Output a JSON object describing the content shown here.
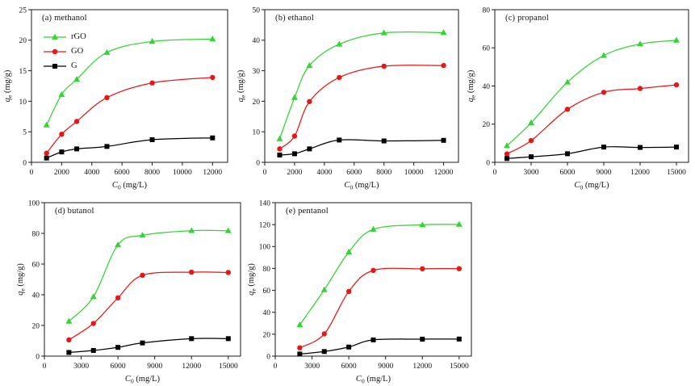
{
  "colors": {
    "rGO": "#33d433",
    "GO": "#e81717",
    "G": "#000000",
    "frame": "#1a1a1a",
    "text": "#111111"
  },
  "legend": {
    "items": [
      {
        "label": "rGO",
        "marker": "triangle",
        "color": "rGO"
      },
      {
        "label": "GO",
        "marker": "circle",
        "color": "GO"
      },
      {
        "label": "G",
        "marker": "square",
        "color": "G"
      }
    ]
  },
  "chart_data": [
    {
      "id": "a",
      "type": "scatter",
      "title": "(a) methanol",
      "xlabel": {
        "it": "C",
        "sub": "0",
        "rest": " (mg/L)"
      },
      "ylabel": {
        "it": "q",
        "sub": "e",
        "rest": " (mg/g)"
      },
      "xlim": [
        0,
        13000
      ],
      "ylim": [
        0,
        25
      ],
      "xticks": [
        0,
        2000,
        4000,
        6000,
        8000,
        10000,
        12000
      ],
      "yticks": [
        0,
        5,
        10,
        15,
        20,
        25
      ],
      "x": [
        1000,
        2000,
        3000,
        5000,
        8000,
        12000
      ],
      "series": [
        {
          "name": "rGO",
          "marker": "triangle",
          "color": "rGO",
          "values": [
            6.1,
            11.1,
            13.6,
            18.0,
            19.8,
            20.2
          ]
        },
        {
          "name": "GO",
          "marker": "circle",
          "color": "GO",
          "values": [
            1.5,
            4.6,
            6.7,
            10.6,
            13.0,
            13.9
          ]
        },
        {
          "name": "G",
          "marker": "square",
          "color": "G",
          "values": [
            0.7,
            1.7,
            2.2,
            2.6,
            3.7,
            4.0
          ]
        }
      ],
      "show_legend": true
    },
    {
      "id": "b",
      "type": "scatter",
      "title": "(b) ethanol",
      "xlabel": {
        "it": "C",
        "sub": "0",
        "rest": " (mg/L)"
      },
      "ylabel": {
        "it": "q",
        "sub": "e",
        "rest": " (mg/g)"
      },
      "xlim": [
        0,
        13000
      ],
      "ylim": [
        0,
        50
      ],
      "xticks": [
        0,
        2000,
        4000,
        6000,
        8000,
        10000,
        12000
      ],
      "yticks": [
        0,
        10,
        20,
        30,
        40,
        50
      ],
      "x": [
        1000,
        2000,
        3000,
        5000,
        8000,
        12000
      ],
      "series": [
        {
          "name": "rGO",
          "marker": "triangle",
          "color": "rGO",
          "values": [
            7.7,
            21.2,
            31.7,
            38.7,
            42.4,
            42.5
          ]
        },
        {
          "name": "GO",
          "marker": "circle",
          "color": "GO",
          "values": [
            4.4,
            8.6,
            19.9,
            27.8,
            31.5,
            31.7
          ]
        },
        {
          "name": "G",
          "marker": "square",
          "color": "G",
          "values": [
            2.4,
            2.8,
            4.4,
            7.3,
            7.0,
            7.2
          ]
        }
      ],
      "show_legend": false
    },
    {
      "id": "c",
      "type": "scatter",
      "title": "(c) propanol",
      "xlabel": {
        "it": "C",
        "sub": "0",
        "rest": " (mg/L)"
      },
      "ylabel": {
        "it": "q",
        "sub": "e",
        "rest": " (mg/g)"
      },
      "xlim": [
        0,
        16000
      ],
      "ylim": [
        0,
        80
      ],
      "xticks": [
        0,
        3000,
        6000,
        9000,
        12000,
        15000
      ],
      "yticks": [
        0,
        20,
        40,
        60,
        80
      ],
      "x": [
        1000,
        3000,
        6000,
        9000,
        12000,
        15000
      ],
      "series": [
        {
          "name": "rGO",
          "marker": "triangle",
          "color": "rGO",
          "values": [
            8.7,
            20.7,
            42.0,
            56.0,
            62.0,
            64.0
          ]
        },
        {
          "name": "GO",
          "marker": "circle",
          "color": "GO",
          "values": [
            4.4,
            11.4,
            27.8,
            36.7,
            38.7,
            40.6
          ]
        },
        {
          "name": "G",
          "marker": "square",
          "color": "G",
          "values": [
            2.0,
            2.9,
            4.5,
            8.0,
            7.8,
            8.0
          ]
        }
      ],
      "show_legend": false
    },
    {
      "id": "d",
      "type": "scatter",
      "title": "(d) butanol",
      "xlabel": {
        "it": "C",
        "sub": "0",
        "rest": " (mg/L)"
      },
      "ylabel": {
        "it": "q",
        "sub": "e",
        "rest": " (mg/g)"
      },
      "xlim": [
        0,
        16000
      ],
      "ylim": [
        0,
        100
      ],
      "xticks": [
        0,
        3000,
        6000,
        9000,
        12000,
        15000
      ],
      "yticks": [
        0,
        20,
        40,
        60,
        80,
        100
      ],
      "x": [
        2000,
        4000,
        6000,
        8000,
        12000,
        15000
      ],
      "series": [
        {
          "name": "rGO",
          "marker": "triangle",
          "color": "rGO",
          "values": [
            22.7,
            38.7,
            72.5,
            78.8,
            81.8,
            81.7
          ]
        },
        {
          "name": "GO",
          "marker": "circle",
          "color": "GO",
          "values": [
            10.6,
            21.3,
            38.0,
            52.7,
            54.7,
            54.5
          ]
        },
        {
          "name": "G",
          "marker": "square",
          "color": "G",
          "values": [
            2.4,
            3.7,
            5.7,
            8.6,
            11.4,
            11.4
          ]
        }
      ],
      "show_legend": false
    },
    {
      "id": "e",
      "type": "scatter",
      "title": "(e) pentanol",
      "xlabel": {
        "it": "C",
        "sub": "0",
        "rest": " (mg/L)"
      },
      "ylabel": {
        "it": "q",
        "sub": "e",
        "rest": " (mg/g)"
      },
      "xlim": [
        0,
        16000
      ],
      "ylim": [
        0,
        140
      ],
      "xticks": [
        0,
        3000,
        6000,
        9000,
        12000,
        15000
      ],
      "yticks": [
        0,
        20,
        40,
        60,
        80,
        100,
        120,
        140
      ],
      "x": [
        2000,
        4000,
        6000,
        8000,
        12000,
        15000
      ],
      "series": [
        {
          "name": "rGO",
          "marker": "triangle",
          "color": "rGO",
          "values": [
            28.6,
            60.5,
            95.0,
            115.7,
            119.8,
            120.2
          ]
        },
        {
          "name": "GO",
          "marker": "circle",
          "color": "GO",
          "values": [
            7.6,
            20.3,
            59.0,
            78.2,
            79.7,
            79.8
          ]
        },
        {
          "name": "G",
          "marker": "square",
          "color": "G",
          "values": [
            1.9,
            4.2,
            8.3,
            14.8,
            15.5,
            15.6
          ]
        }
      ],
      "show_legend": false
    }
  ]
}
